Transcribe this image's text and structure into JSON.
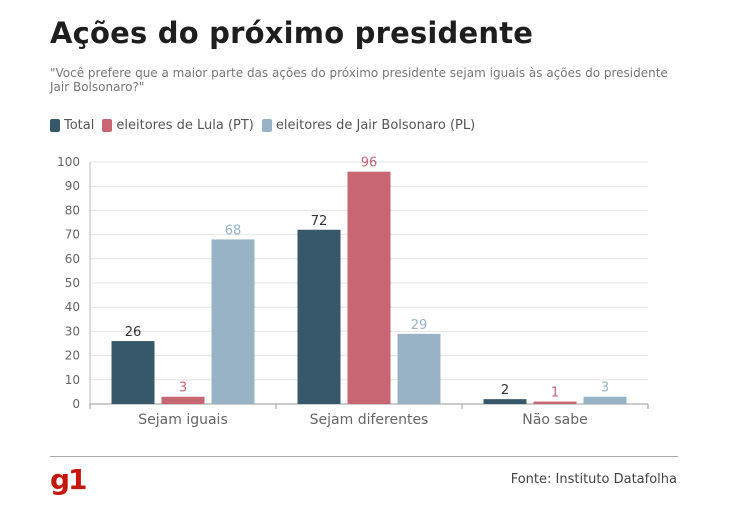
{
  "title": "Ações do próximo presidente",
  "subtitle": "\"Você prefere que a maior parte das ações do próximo presidente sejam iguais às ações do presidente Jair Bolsonaro?\"",
  "footer": {
    "logo": "g1",
    "source": "Fonte: Instituto Datafolha"
  },
  "colors": {
    "total": "#37586a",
    "lula": "#c86674",
    "bolsonaro": "#97b3c4",
    "grid": "#e4e4e4",
    "axis": "#999999"
  },
  "chart_data": {
    "type": "bar",
    "categories": [
      "Sejam iguais",
      "Sejam diferentes",
      "Não sabe"
    ],
    "series": [
      {
        "name": "Total",
        "values": [
          26,
          72,
          2
        ],
        "color": "#37586a"
      },
      {
        "name": "eleitores de Lula (PT)",
        "values": [
          3,
          96,
          1
        ],
        "color": "#c86674"
      },
      {
        "name": "eleitores de Jair Bolsonaro (PL)",
        "values": [
          68,
          29,
          3
        ],
        "color": "#97b3c4"
      }
    ],
    "ylim": [
      0,
      100
    ],
    "yticks": [
      0,
      10,
      20,
      30,
      40,
      50,
      60,
      70,
      80,
      90,
      100
    ],
    "grid": true,
    "legend": "top-left"
  }
}
